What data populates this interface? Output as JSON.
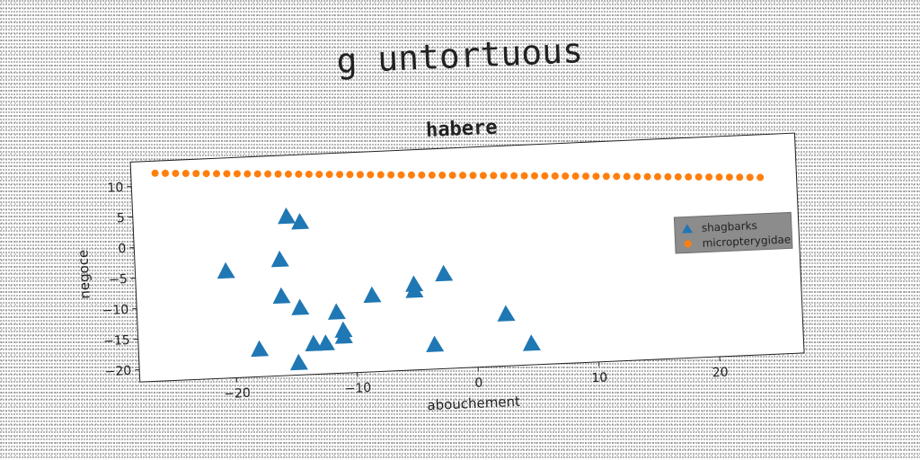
{
  "suptitle": "g untortuous",
  "chart_data": {
    "type": "scatter",
    "title": "habere",
    "xlabel": "abouchement",
    "ylabel": "negoce",
    "xlim": [
      -28,
      27
    ],
    "ylim": [
      -22,
      14
    ],
    "xticks": [
      -20,
      -10,
      0,
      10,
      20
    ],
    "yticks": [
      -20,
      -15,
      -10,
      -5,
      0,
      5,
      10
    ],
    "legend_position": "right",
    "series": [
      {
        "name": "shagbarks",
        "marker": "triangle",
        "color": "#1f77b4",
        "x": [
          -20.5,
          -18,
          -16,
          -16,
          -15.3,
          -14.5,
          -14.2,
          -14.8,
          -13.5,
          -12.5,
          -11.5,
          -11,
          -11,
          -8.5,
          -5,
          -5,
          -3.5,
          -2.5,
          2.5,
          4.5
        ],
        "y": [
          -4.5,
          -17.5,
          -3,
          -9,
          4,
          -11,
          3,
          -20,
          -17,
          -17,
          -12,
          -15,
          -16,
          -9.5,
          -9,
          -8,
          -18,
          -6.5,
          -13.5,
          -18.5
        ]
      },
      {
        "name": "micropterygidae",
        "marker": "circle",
        "color": "#ff7f0e",
        "x_start": -26,
        "x_end": 24,
        "y_start": 12,
        "y_end": 7,
        "count": 60
      }
    ]
  }
}
